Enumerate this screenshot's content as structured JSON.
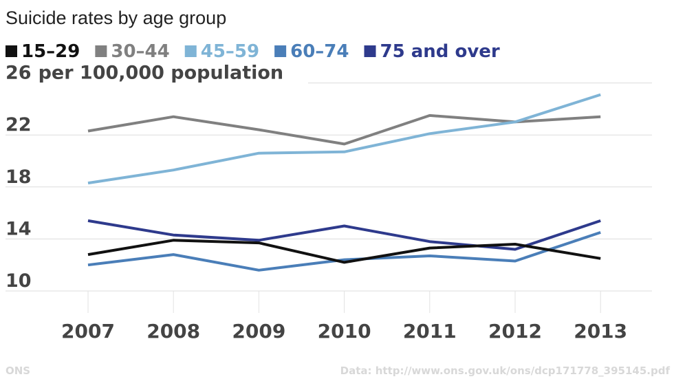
{
  "chart_data": {
    "type": "line",
    "title": "Suicide rates by age group",
    "ylabel": "per 100,000 population",
    "xlabel": "",
    "x": [
      "2007",
      "2008",
      "2009",
      "2010",
      "2011",
      "2012",
      "2013"
    ],
    "ylim": [
      10,
      26
    ],
    "yticks": [
      10,
      14,
      18,
      22,
      26
    ],
    "grid": true,
    "legend_position": "top",
    "series": [
      {
        "name": "15–29",
        "color": "#111111",
        "values": [
          12.8,
          13.9,
          13.7,
          12.2,
          13.3,
          13.6,
          12.5
        ]
      },
      {
        "name": "30–44",
        "color": "#808080",
        "values": [
          22.3,
          23.4,
          22.4,
          21.3,
          23.5,
          23.0,
          23.4
        ]
      },
      {
        "name": "45–59",
        "color": "#7fb4d6",
        "values": [
          18.3,
          19.3,
          20.6,
          20.7,
          22.1,
          23.0,
          25.1
        ]
      },
      {
        "name": "60–74",
        "color": "#4a7eb8",
        "values": [
          12.0,
          12.8,
          11.6,
          12.4,
          12.7,
          12.3,
          14.5
        ]
      },
      {
        "name": "75 and over",
        "color": "#2e3a8c",
        "values": [
          15.4,
          14.3,
          13.9,
          15.0,
          13.8,
          13.2,
          15.4
        ]
      }
    ]
  },
  "footer": {
    "source_left": "ONS",
    "source_right": "Data: http://www.ons.gov.uk/ons/dcp171778_395145.pdf"
  }
}
